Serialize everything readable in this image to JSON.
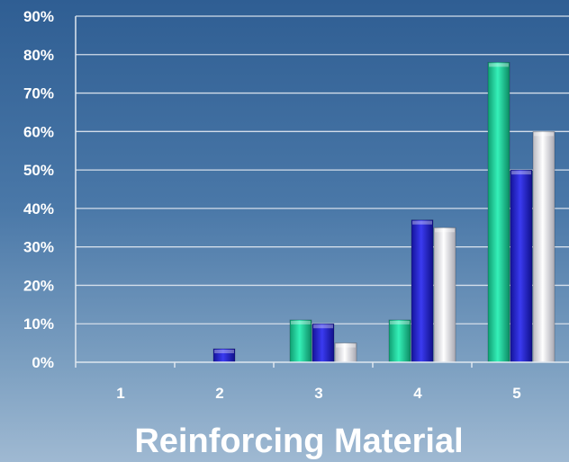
{
  "chart_data": {
    "type": "bar",
    "title": "",
    "xlabel": "Reinforcing Material",
    "ylabel": "",
    "categories": [
      "1",
      "2",
      "3",
      "4",
      "5"
    ],
    "series": [
      {
        "color": "#1ed7a0",
        "values": [
          0,
          0,
          11,
          11,
          78
        ]
      },
      {
        "color": "#2626d8",
        "values": [
          0,
          3.5,
          10,
          37,
          50
        ]
      },
      {
        "color": "#e6e6ea",
        "values": [
          0,
          0,
          5,
          35,
          60
        ]
      }
    ],
    "ylim": [
      0,
      90
    ],
    "yticks": [
      "0%",
      "10%",
      "20%",
      "30%",
      "40%",
      "50%",
      "60%",
      "70%",
      "80%",
      "90%"
    ],
    "grid": true,
    "legend": "none"
  }
}
